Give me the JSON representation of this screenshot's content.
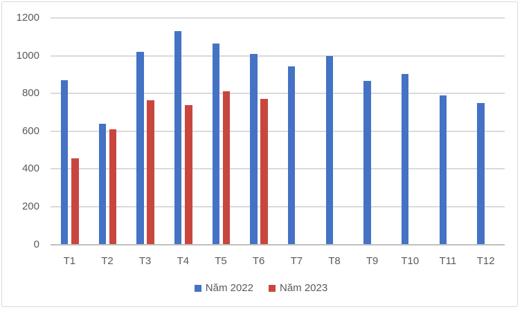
{
  "chart_data": {
    "type": "bar",
    "title": "",
    "categories": [
      "T1",
      "T2",
      "T3",
      "T4",
      "T5",
      "T6",
      "T7",
      "T8",
      "T9",
      "T10",
      "T11",
      "T12"
    ],
    "series": [
      {
        "name": "Năm 2022",
        "color": "#4472C4",
        "values": [
          870,
          640,
          1020,
          1130,
          1065,
          1010,
          945,
          1000,
          865,
          905,
          790,
          750
        ]
      },
      {
        "name": "Năm 2023",
        "color": "#C9463F",
        "values": [
          455,
          610,
          765,
          740,
          810,
          770,
          null,
          null,
          null,
          null,
          null,
          null
        ]
      }
    ],
    "ylim": [
      0,
      1200
    ],
    "ytick_interval": 200,
    "ytick_labels": [
      "0",
      "200",
      "400",
      "600",
      "800",
      "1000",
      "1200"
    ],
    "grid": true,
    "legend_position": "bottom-center",
    "colors": {
      "axis_label": "#595959",
      "gridline": "#DADADA",
      "axis_line": "#BFBFBF",
      "frame_border": "#D8D8D8"
    }
  }
}
